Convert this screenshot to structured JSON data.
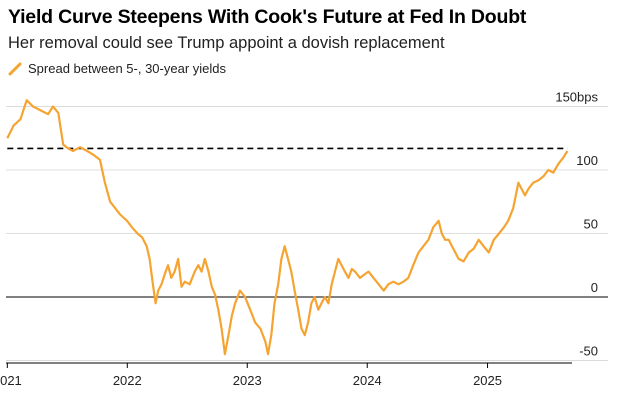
{
  "header": {
    "title": "Yield Curve Steepens With Cook's Future at Fed In Doubt",
    "subtitle": "Her removal could see Trump appoint a dovish replacement"
  },
  "chart_data": {
    "type": "line",
    "legend_position": "top-left",
    "grid": true,
    "series": [
      {
        "name": "Spread between 5-, 30-year yields",
        "color": "#f5a431",
        "points": [
          [
            "2021-01-01",
            125
          ],
          [
            "2021-01-20",
            135
          ],
          [
            "2021-02-10",
            140
          ],
          [
            "2021-03-01",
            155
          ],
          [
            "2021-03-20",
            150
          ],
          [
            "2021-04-05",
            148
          ],
          [
            "2021-04-20",
            146
          ],
          [
            "2021-05-05",
            144
          ],
          [
            "2021-05-20",
            150
          ],
          [
            "2021-06-05",
            145
          ],
          [
            "2021-06-20",
            120
          ],
          [
            "2021-07-05",
            117
          ],
          [
            "2021-07-20",
            115
          ],
          [
            "2021-08-10",
            118
          ],
          [
            "2021-09-01",
            115
          ],
          [
            "2021-09-20",
            112
          ],
          [
            "2021-10-10",
            108
          ],
          [
            "2021-10-25",
            90
          ],
          [
            "2021-11-10",
            75
          ],
          [
            "2021-11-25",
            70
          ],
          [
            "2021-12-10",
            65
          ],
          [
            "2021-12-31",
            60
          ],
          [
            "2022-01-15",
            55
          ],
          [
            "2022-02-01",
            50
          ],
          [
            "2022-02-15",
            47
          ],
          [
            "2022-03-01",
            40
          ],
          [
            "2022-03-10",
            30
          ],
          [
            "2022-03-20",
            10
          ],
          [
            "2022-03-28",
            -5
          ],
          [
            "2022-04-05",
            5
          ],
          [
            "2022-04-15",
            10
          ],
          [
            "2022-04-25",
            18
          ],
          [
            "2022-05-05",
            25
          ],
          [
            "2022-05-15",
            15
          ],
          [
            "2022-05-25",
            20
          ],
          [
            "2022-06-05",
            30
          ],
          [
            "2022-06-15",
            8
          ],
          [
            "2022-06-25",
            12
          ],
          [
            "2022-07-10",
            10
          ],
          [
            "2022-07-25",
            20
          ],
          [
            "2022-08-05",
            25
          ],
          [
            "2022-08-15",
            20
          ],
          [
            "2022-08-25",
            30
          ],
          [
            "2022-09-05",
            20
          ],
          [
            "2022-09-15",
            8
          ],
          [
            "2022-09-25",
            2
          ],
          [
            "2022-10-05",
            -10
          ],
          [
            "2022-10-15",
            -25
          ],
          [
            "2022-10-25",
            -45
          ],
          [
            "2022-11-05",
            -30
          ],
          [
            "2022-11-15",
            -15
          ],
          [
            "2022-11-25",
            -5
          ],
          [
            "2022-12-10",
            5
          ],
          [
            "2022-12-25",
            0
          ],
          [
            "2023-01-10",
            -10
          ],
          [
            "2023-01-25",
            -20
          ],
          [
            "2023-02-10",
            -25
          ],
          [
            "2023-02-25",
            -35
          ],
          [
            "2023-03-05",
            -45
          ],
          [
            "2023-03-15",
            -30
          ],
          [
            "2023-03-25",
            -5
          ],
          [
            "2023-04-05",
            10
          ],
          [
            "2023-04-15",
            30
          ],
          [
            "2023-04-25",
            40
          ],
          [
            "2023-05-05",
            30
          ],
          [
            "2023-05-15",
            20
          ],
          [
            "2023-05-25",
            5
          ],
          [
            "2023-06-05",
            -10
          ],
          [
            "2023-06-15",
            -25
          ],
          [
            "2023-06-25",
            -30
          ],
          [
            "2023-07-05",
            -20
          ],
          [
            "2023-07-15",
            -5
          ],
          [
            "2023-07-25",
            0
          ],
          [
            "2023-08-05",
            -10
          ],
          [
            "2023-08-15",
            -5
          ],
          [
            "2023-08-25",
            0
          ],
          [
            "2023-09-05",
            -5
          ],
          [
            "2023-09-15",
            10
          ],
          [
            "2023-09-25",
            20
          ],
          [
            "2023-10-05",
            30
          ],
          [
            "2023-10-15",
            25
          ],
          [
            "2023-10-25",
            20
          ],
          [
            "2023-11-05",
            15
          ],
          [
            "2023-11-15",
            22
          ],
          [
            "2023-11-25",
            20
          ],
          [
            "2023-12-10",
            15
          ],
          [
            "2023-12-25",
            18
          ],
          [
            "2024-01-05",
            20
          ],
          [
            "2024-01-20",
            15
          ],
          [
            "2024-02-05",
            10
          ],
          [
            "2024-02-20",
            5
          ],
          [
            "2024-03-05",
            10
          ],
          [
            "2024-03-20",
            12
          ],
          [
            "2024-04-05",
            10
          ],
          [
            "2024-04-20",
            12
          ],
          [
            "2024-05-05",
            15
          ],
          [
            "2024-05-20",
            25
          ],
          [
            "2024-06-05",
            35
          ],
          [
            "2024-06-20",
            40
          ],
          [
            "2024-07-05",
            45
          ],
          [
            "2024-07-20",
            55
          ],
          [
            "2024-08-05",
            60
          ],
          [
            "2024-08-15",
            50
          ],
          [
            "2024-08-25",
            45
          ],
          [
            "2024-09-05",
            45
          ],
          [
            "2024-09-15",
            40
          ],
          [
            "2024-09-25",
            35
          ],
          [
            "2024-10-05",
            30
          ],
          [
            "2024-10-20",
            28
          ],
          [
            "2024-11-05",
            35
          ],
          [
            "2024-11-20",
            38
          ],
          [
            "2024-12-05",
            45
          ],
          [
            "2024-12-20",
            40
          ],
          [
            "2025-01-05",
            35
          ],
          [
            "2025-01-20",
            45
          ],
          [
            "2025-02-05",
            50
          ],
          [
            "2025-02-20",
            55
          ],
          [
            "2025-03-05",
            60
          ],
          [
            "2025-03-20",
            70
          ],
          [
            "2025-04-05",
            90
          ],
          [
            "2025-04-15",
            85
          ],
          [
            "2025-04-25",
            80
          ],
          [
            "2025-05-05",
            85
          ],
          [
            "2025-05-20",
            90
          ],
          [
            "2025-06-05",
            92
          ],
          [
            "2025-06-20",
            95
          ],
          [
            "2025-07-05",
            100
          ],
          [
            "2025-07-20",
            98
          ],
          [
            "2025-08-05",
            105
          ],
          [
            "2025-08-20",
            110
          ],
          [
            "2025-09-01",
            115
          ]
        ]
      }
    ],
    "x_ticks": [
      {
        "date": "2021-01-01",
        "label": "2021"
      },
      {
        "date": "2022-01-01",
        "label": "2022"
      },
      {
        "date": "2023-01-01",
        "label": "2023"
      },
      {
        "date": "2024-01-01",
        "label": "2024"
      },
      {
        "date": "2025-01-01",
        "label": "2025"
      }
    ],
    "y_ticks": [
      {
        "value": 150,
        "label": "150bps"
      },
      {
        "value": 100,
        "label": "100"
      },
      {
        "value": 50,
        "label": "50"
      },
      {
        "value": 0,
        "label": "0"
      },
      {
        "value": -50,
        "label": "-50"
      }
    ],
    "xlim": [
      "2020-12-28",
      "2025-09-15"
    ],
    "ylim": [
      -52,
      152
    ],
    "reference_line": {
      "value": 117,
      "style": "dashed",
      "x_start": "2021-01-01",
      "x_end": "2025-09-01"
    }
  }
}
